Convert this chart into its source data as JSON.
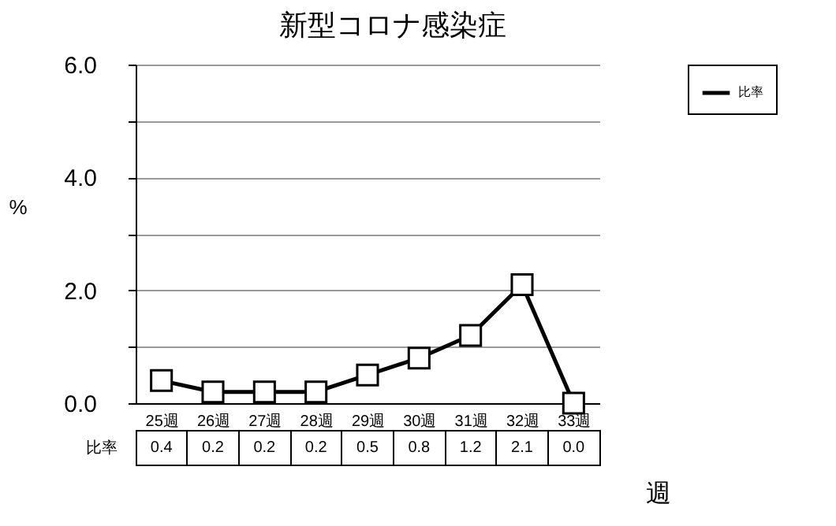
{
  "chart_data": {
    "type": "line",
    "title": "新型コロナ感染症",
    "xlabel": "週",
    "ylabel": "%",
    "categories": [
      "25週",
      "26週",
      "27週",
      "28週",
      "29週",
      "30週",
      "31週",
      "32週",
      "33週"
    ],
    "series": [
      {
        "name": "比率",
        "color": "#000000",
        "values": [
          0.4,
          0.2,
          0.2,
          0.2,
          0.5,
          0.8,
          1.2,
          2.1,
          0.0
        ],
        "value_labels": [
          "0.4",
          "0.2",
          "0.2",
          "0.2",
          "0.5",
          "0.8",
          "1.2",
          "2.1",
          "0.0"
        ]
      }
    ],
    "ylim": [
      0,
      6
    ],
    "yticks": [
      {
        "value": 0,
        "label": "0.0"
      },
      {
        "value": 1,
        "label": null
      },
      {
        "value": 2,
        "label": "2.0"
      },
      {
        "value": 3,
        "label": null
      },
      {
        "value": 4,
        "label": "4.0"
      },
      {
        "value": 5,
        "label": null
      },
      {
        "value": 6,
        "label": "6.0"
      }
    ],
    "grid": "y",
    "legend": "top right",
    "marker": "square",
    "line_style": "solid"
  }
}
